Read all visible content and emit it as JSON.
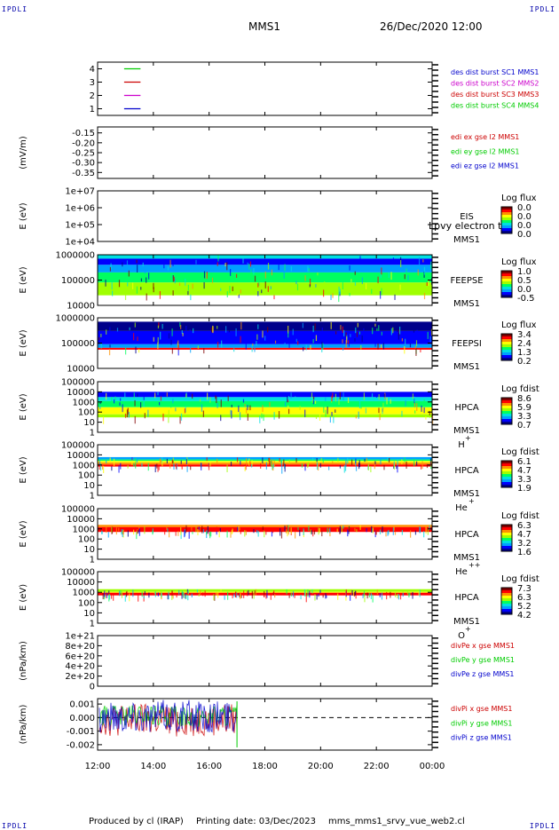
{
  "header": {
    "corner_label": "IPDLI",
    "spacecraft": "MMS1",
    "datetime": "26/Dec/2020 12:00"
  },
  "footer": {
    "producer": "Produced by cl (IRAP)",
    "printing_date": "Printing date: 03/Dec/2023",
    "file": "mms_mms1_srvy_vue_web2.cl"
  },
  "colors": {
    "blue": "#0000cc",
    "red": "#cc0000",
    "green": "#00cc00",
    "magenta": "#cc00cc",
    "flux_scale": [
      "#00008b",
      "#0000ff",
      "#00a0ff",
      "#00e0e0",
      "#00ff60",
      "#a0ff00",
      "#ffff00",
      "#ff9000",
      "#ff0000",
      "#800000"
    ]
  },
  "chart_data": [
    {
      "type": "line",
      "panel": "des-dist-burst",
      "y_ticks": [
        "1",
        "2",
        "3",
        "4"
      ],
      "ylim": [
        0.5,
        4.5
      ],
      "legend": [
        {
          "name": "des dist burst SC1 MMS1",
          "color": "#0000cc"
        },
        {
          "name": "des dist burst SC2 MMS2",
          "color": "#cc00cc"
        },
        {
          "name": "des dist burst SC3 MMS3",
          "color": "#cc0000"
        },
        {
          "name": "des dist burst SC4 MMS4",
          "color": "#00cc00"
        }
      ],
      "series": [
        {
          "name": "des dist burst SC1 MMS1",
          "level": 1,
          "x": [
            "13:20",
            "13:40"
          ]
        },
        {
          "name": "des dist burst SC2 MMS2",
          "level": 2,
          "x": [
            "13:20",
            "13:40"
          ]
        },
        {
          "name": "des dist burst SC3 MMS3",
          "level": 3,
          "x": [
            "13:20",
            "13:40"
          ]
        },
        {
          "name": "des dist burst SC4 MMS4",
          "level": 4,
          "x": [
            "13:20",
            "13:40"
          ]
        }
      ]
    },
    {
      "type": "line",
      "panel": "edi-e",
      "ylabel": "(mV/m)",
      "y_ticks": [
        "-0.15",
        "-0.20",
        "-0.25",
        "-0.30",
        "-0.35"
      ],
      "ylim": [
        -0.38,
        -0.12
      ],
      "legend": [
        {
          "name": "edi ex gse l2 MMS1",
          "color": "#cc0000"
        },
        {
          "name": "edi ey gse l2 MMS1",
          "color": "#00cc00"
        },
        {
          "name": "edi ez gse l2 MMS1",
          "color": "#0000cc"
        }
      ]
    },
    {
      "type": "heatmap",
      "panel": "eis",
      "ylabel": "E (eV)",
      "scale": "log",
      "y_ticks": [
        "1e+04",
        "1e+05",
        "1e+06",
        "1e+07"
      ],
      "ylim": [
        10000,
        10000000
      ],
      "instrument": "EIS",
      "instrument_sub": "MMS1",
      "overlay_text": "Lpvy electron to",
      "colorbar_title": "Log flux",
      "colorbar_ticks": [
        "0.0",
        "0.0",
        "0.0",
        "0.0"
      ]
    },
    {
      "type": "heatmap",
      "panel": "feepse",
      "ylabel": "E (eV)",
      "scale": "log",
      "y_ticks": [
        "10000",
        "100000",
        "1000000"
      ],
      "ylim": [
        10000,
        1000000
      ],
      "instrument": "FEEPSE",
      "instrument_sub": "MMS1",
      "colorbar_title": "Log flux",
      "colorbar_ticks": [
        "1.0",
        "0.5",
        "0.0",
        "-0.5"
      ],
      "x_range": [
        "12:00",
        "00:00"
      ],
      "bands": [
        {
          "from": 700000,
          "to": 1000000,
          "color": "#00e0e0"
        },
        {
          "from": 400000,
          "to": 700000,
          "color": "#0000ff"
        },
        {
          "from": 200000,
          "to": 400000,
          "color": "#00a0ff"
        },
        {
          "from": 80000,
          "to": 200000,
          "color": "#00ff60"
        },
        {
          "from": 25000,
          "to": 80000,
          "color": "#a0ff00"
        }
      ]
    },
    {
      "type": "heatmap",
      "panel": "feepsi",
      "ylabel": "E (eV)",
      "scale": "log",
      "y_ticks": [
        "10000",
        "100000",
        "1000000"
      ],
      "ylim": [
        10000,
        1000000
      ],
      "instrument": "FEEPSI",
      "instrument_sub": "MMS1",
      "colorbar_title": "Log flux",
      "colorbar_ticks": [
        "3.4",
        "2.4",
        "1.3",
        "0.2"
      ],
      "x_range": [
        "12:00",
        "00:00"
      ],
      "bands": [
        {
          "from": 300000,
          "to": 700000,
          "color": "#00008b"
        },
        {
          "from": 90000,
          "to": 300000,
          "color": "#0000ff"
        },
        {
          "from": 65000,
          "to": 90000,
          "color": "#00a0ff"
        },
        {
          "from": 55000,
          "to": 65000,
          "color": "#ff0000"
        }
      ]
    },
    {
      "type": "heatmap",
      "panel": "hpca-h",
      "ylabel": "E (eV)",
      "scale": "log",
      "y_ticks": [
        "1",
        "10",
        "100",
        "1000",
        "10000",
        "100000"
      ],
      "ylim": [
        1,
        100000
      ],
      "instrument": "HPCA",
      "instrument_sub": "MMS1",
      "species": "H",
      "species_sup": "+",
      "colorbar_title": "Log fdist",
      "colorbar_ticks": [
        "8.6",
        "5.9",
        "3.3",
        "0.7"
      ],
      "x_range": [
        "12:00",
        "00:00"
      ],
      "bands": [
        {
          "from": 3000,
          "to": 10000,
          "color": "#0000ff"
        },
        {
          "from": 1200,
          "to": 3000,
          "color": "#00e0e0"
        },
        {
          "from": 300,
          "to": 1200,
          "color": "#00ff60"
        },
        {
          "from": 60,
          "to": 300,
          "color": "#ffff00"
        },
        {
          "from": 30,
          "to": 60,
          "color": "#a0ff00"
        }
      ]
    },
    {
      "type": "heatmap",
      "panel": "hpca-he",
      "ylabel": "E (eV)",
      "scale": "log",
      "y_ticks": [
        "1",
        "10",
        "100",
        "1000",
        "10000",
        "100000"
      ],
      "ylim": [
        1,
        100000
      ],
      "instrument": "HPCA",
      "instrument_sub": "MMS1",
      "species": "He",
      "species_sup": "+",
      "colorbar_title": "Log fdist",
      "colorbar_ticks": [
        "6.1",
        "4.7",
        "3.3",
        "1.9"
      ],
      "x_range": [
        "12:00",
        "00:00"
      ],
      "bands": [
        {
          "from": 3500,
          "to": 6000,
          "color": "#00a0ff"
        },
        {
          "from": 2500,
          "to": 3500,
          "color": "#00ff60"
        },
        {
          "from": 1700,
          "to": 2500,
          "color": "#ffff00"
        },
        {
          "from": 1100,
          "to": 1700,
          "color": "#ff9000"
        },
        {
          "from": 700,
          "to": 1100,
          "color": "#ff0000"
        }
      ]
    },
    {
      "type": "heatmap",
      "panel": "hpca-hepp",
      "ylabel": "E (eV)",
      "scale": "log",
      "y_ticks": [
        "1",
        "10",
        "100",
        "1000",
        "10000",
        "100000"
      ],
      "ylim": [
        1,
        100000
      ],
      "instrument": "HPCA",
      "instrument_sub": "MMS1",
      "species": "He",
      "species_sup": "++",
      "colorbar_title": "Log fdist",
      "colorbar_ticks": [
        "6.3",
        "4.7",
        "3.2",
        "1.6"
      ],
      "x_range": [
        "12:00",
        "00:00"
      ],
      "bands": [
        {
          "from": 1500,
          "to": 2500,
          "color": "#ff9000"
        },
        {
          "from": 500,
          "to": 1500,
          "color": "#ff0000"
        }
      ]
    },
    {
      "type": "heatmap",
      "panel": "hpca-o",
      "ylabel": "E (eV)",
      "scale": "log",
      "y_ticks": [
        "1",
        "10",
        "100",
        "1000",
        "10000",
        "100000"
      ],
      "ylim": [
        1,
        100000
      ],
      "instrument": "HPCA",
      "instrument_sub": "MMS1",
      "species": "O",
      "species_sup": "+",
      "colorbar_title": "Log fdist",
      "colorbar_ticks": [
        "7.3",
        "6.3",
        "5.2",
        "4.2"
      ],
      "x_range": [
        "12:00",
        "00:00"
      ],
      "bands": [
        {
          "from": 1100,
          "to": 2000,
          "color": "#a0ff00"
        },
        {
          "from": 900,
          "to": 1100,
          "color": "#ffff00"
        },
        {
          "from": 500,
          "to": 900,
          "color": "#ff0000"
        }
      ]
    },
    {
      "type": "line",
      "panel": "divpe",
      "ylabel": "(nPa/km)",
      "y_ticks": [
        "0",
        "2e+20",
        "4e+20",
        "6e+20",
        "8e+20",
        "1e+21"
      ],
      "ylim": [
        0,
        1e+21
      ],
      "reference_line": 0,
      "legend": [
        {
          "name": "divPe x gse MMS1",
          "color": "#cc0000"
        },
        {
          "name": "divPe y gse MMS1",
          "color": "#00cc00"
        },
        {
          "name": "divPe z gse MMS1",
          "color": "#0000cc"
        }
      ]
    },
    {
      "type": "line",
      "panel": "divpi",
      "ylabel": "(nPa/km)",
      "y_ticks": [
        "-0.002",
        "-0.001",
        "0.000",
        "0.001"
      ],
      "ylim": [
        -0.0024,
        0.0014
      ],
      "reference_line": 0,
      "x_range": [
        "12:00",
        "17:00"
      ],
      "legend": [
        {
          "name": "divPi x gse MMS1",
          "color": "#cc0000"
        },
        {
          "name": "divPi y gse MMS1",
          "color": "#00cc00"
        },
        {
          "name": "divPi z gse MMS1",
          "color": "#0000cc"
        }
      ]
    }
  ],
  "x_axis": {
    "ticks": [
      "12:00",
      "14:00",
      "16:00",
      "18:00",
      "20:00",
      "22:00",
      "00:00"
    ]
  }
}
